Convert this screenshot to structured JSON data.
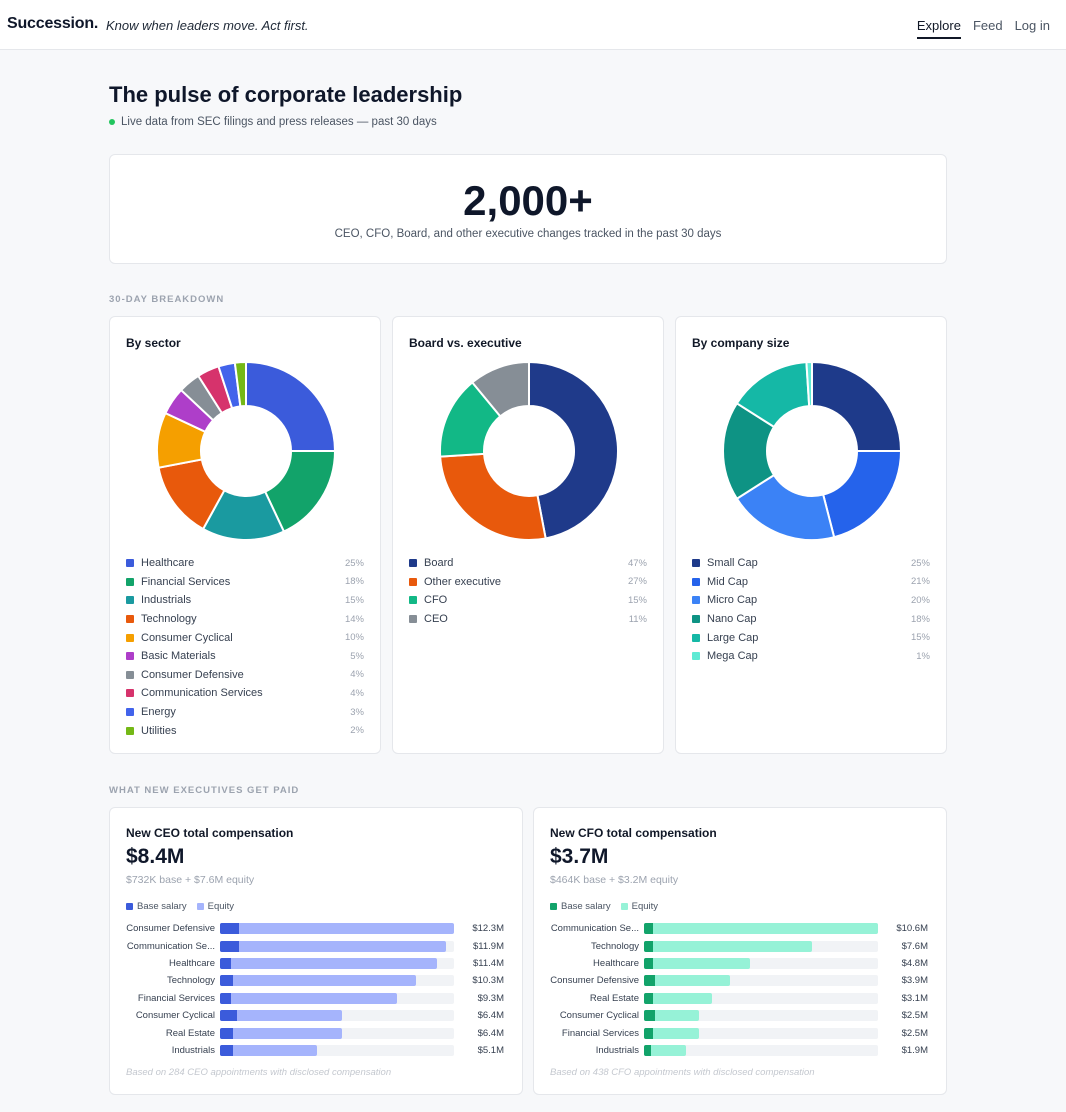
{
  "header": {
    "brand": "Succession.",
    "tagline": "Know when leaders move. Act first.",
    "nav": [
      "Explore",
      "Feed",
      "Log in"
    ]
  },
  "page": {
    "title": "The pulse of corporate leadership",
    "subtitle": "Live data from SEC filings and press releases — past 30 days"
  },
  "hero": {
    "value": "2,000+",
    "description": "CEO, CFO, Board, and other executive changes tracked in the past 30 days"
  },
  "sections": {
    "breakdown": "30-DAY BREAKDOWN",
    "pay": "WHAT NEW EXECUTIVES GET PAID"
  },
  "chart_data": [
    {
      "type": "pie",
      "title": "By sector",
      "categories": [
        "Healthcare",
        "Financial Services",
        "Industrials",
        "Technology",
        "Consumer Cyclical",
        "Basic Materials",
        "Consumer Defensive",
        "Communication Services",
        "Energy",
        "Utilities"
      ],
      "values": [
        25,
        18,
        15,
        14,
        10,
        5,
        4,
        4,
        3,
        2
      ],
      "labels": [
        "25%",
        "18%",
        "15%",
        "14%",
        "10%",
        "5%",
        "4%",
        "4%",
        "3%",
        "2%"
      ],
      "colors": [
        "#3b5bdb",
        "#12a36a",
        "#1a9aa0",
        "#e8590c",
        "#f59f00",
        "#ae3ec9",
        "#868e96",
        "#d6336c",
        "#4263eb",
        "#74b816"
      ]
    },
    {
      "type": "pie",
      "title": "Board vs. executive",
      "categories": [
        "Board",
        "Other executive",
        "CFO",
        "CEO"
      ],
      "values": [
        47,
        27,
        15,
        11
      ],
      "labels": [
        "47%",
        "27%",
        "15%",
        "11%"
      ],
      "colors": [
        "#1f3a8a",
        "#e8590c",
        "#12b886",
        "#868e96"
      ]
    },
    {
      "type": "pie",
      "title": "By company size",
      "categories": [
        "Small Cap",
        "Mid Cap",
        "Micro Cap",
        "Nano Cap",
        "Large Cap",
        "Mega Cap"
      ],
      "values": [
        25,
        21,
        20,
        18,
        15,
        1
      ],
      "labels": [
        "25%",
        "21%",
        "20%",
        "18%",
        "15%",
        "1%"
      ],
      "colors": [
        "#1e3a8a",
        "#2563eb",
        "#3b82f6",
        "#0e9384",
        "#15b8a6",
        "#5eead4"
      ]
    },
    {
      "type": "bar",
      "title": "New CEO total compensation",
      "total": "$8.4M",
      "subtitle": "$732K base + $7.6M equity",
      "series_names": [
        "Base salary",
        "Equity"
      ],
      "categories": [
        "Consumer Defensive",
        "Communication Se...",
        "Healthcare",
        "Technology",
        "Financial Services",
        "Consumer Cyclical",
        "Real Estate",
        "Industrials"
      ],
      "values": [
        12.3,
        11.9,
        11.4,
        10.3,
        9.3,
        6.4,
        6.4,
        5.1
      ],
      "labels": [
        "$12.3M",
        "$11.9M",
        "$11.4M",
        "$10.3M",
        "$9.3M",
        "$6.4M",
        "$6.4M",
        "$5.1M"
      ],
      "base": [
        1.0,
        1.0,
        0.6,
        0.7,
        0.6,
        0.9,
        0.7,
        0.7
      ],
      "xlim": [
        0,
        12.3
      ],
      "colors": {
        "base": "#3b5bdb",
        "equity": "#a5b4fc"
      },
      "footnote": "Based on 284 CEO appointments with disclosed compensation"
    },
    {
      "type": "bar",
      "title": "New CFO total compensation",
      "total": "$3.7M",
      "subtitle": "$464K base + $3.2M equity",
      "series_names": [
        "Base salary",
        "Equity"
      ],
      "categories": [
        "Communication Se...",
        "Technology",
        "Healthcare",
        "Consumer Defensive",
        "Real Estate",
        "Consumer Cyclical",
        "Financial Services",
        "Industrials"
      ],
      "values": [
        10.6,
        7.6,
        4.8,
        3.9,
        3.1,
        2.5,
        2.5,
        1.9
      ],
      "labels": [
        "$10.6M",
        "$7.6M",
        "$4.8M",
        "$3.9M",
        "$3.1M",
        "$2.5M",
        "$2.5M",
        "$1.9M"
      ],
      "base": [
        0.4,
        0.4,
        0.4,
        0.5,
        0.4,
        0.5,
        0.4,
        0.3
      ],
      "xlim": [
        0,
        10.6
      ],
      "colors": {
        "base": "#12a36a",
        "equity": "#96f2d7"
      },
      "footnote": "Based on 438 CFO appointments with disclosed compensation"
    }
  ]
}
